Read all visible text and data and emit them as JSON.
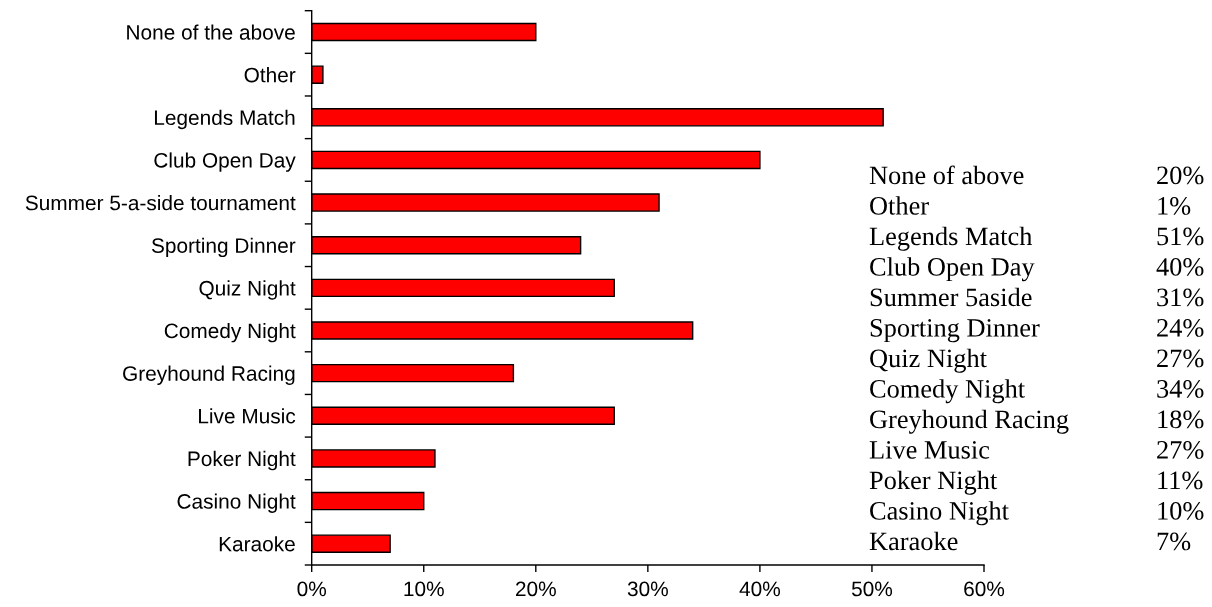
{
  "chart_data": {
    "type": "bar",
    "orientation": "horizontal",
    "categories": [
      "None of the above",
      "Other",
      "Legends Match",
      "Club Open Day",
      "Summer 5-a-side tournament",
      "Sporting Dinner",
      "Quiz Night",
      "Comedy Night",
      "Greyhound Racing",
      "Live Music",
      "Poker Night",
      "Casino Night",
      "Karaoke"
    ],
    "values": [
      20,
      1,
      51,
      40,
      31,
      24,
      27,
      34,
      18,
      27,
      11,
      10,
      7
    ],
    "color": "#ff0000",
    "xlim": [
      0,
      60
    ],
    "xticks": [
      {
        "value": 0,
        "label": "0%"
      },
      {
        "value": 10,
        "label": "10%"
      },
      {
        "value": 20,
        "label": "20%"
      },
      {
        "value": 30,
        "label": "30%"
      },
      {
        "value": 40,
        "label": "40%"
      },
      {
        "value": 50,
        "label": "50%"
      },
      {
        "value": 60,
        "label": "60%"
      }
    ],
    "annotations": [
      "None of above",
      "20%",
      "Other",
      "1%",
      "Legends Match",
      "51%",
      "Club Open Day",
      "40%",
      "Summer 5aside",
      "31%",
      "Sporting Dinner",
      "24%",
      "Quiz Night",
      "27%",
      "Comedy Night",
      "34%",
      "Greyhound Racing",
      "18%",
      "Live Music",
      "27%",
      "Poker Night",
      "11%",
      "Casino Night",
      "10%",
      "Karaoke",
      "7%"
    ]
  }
}
